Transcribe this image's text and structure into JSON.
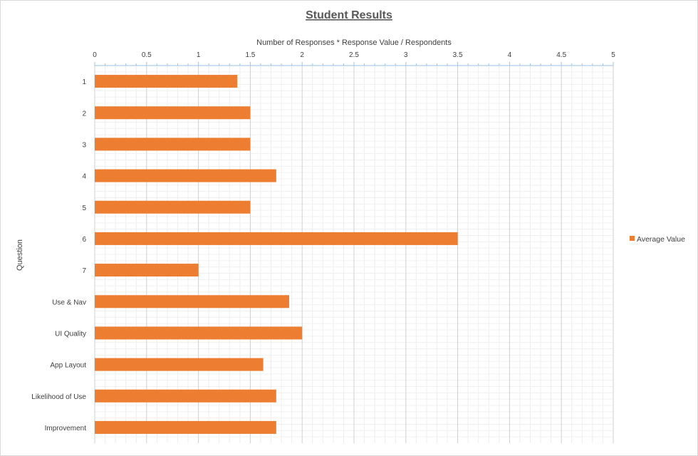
{
  "chart_data": {
    "type": "bar",
    "orientation": "horizontal",
    "title": "Student Results",
    "xlabel": "Number of Responses * Response Value / Respondents",
    "ylabel": "Question",
    "xlim": [
      0,
      5
    ],
    "x_ticks": [
      "0",
      "0.5",
      "1",
      "1.5",
      "2",
      "2.5",
      "3",
      "3.5",
      "4",
      "4.5",
      "5"
    ],
    "x_axis_position": "top",
    "grid": true,
    "legend_position": "right",
    "categories": [
      "1",
      "2",
      "3",
      "4",
      "5",
      "6",
      "7",
      "Use & Nav",
      "UI Quality",
      "App Layout",
      "Likelihood of Use",
      "Improvement"
    ],
    "series": [
      {
        "name": "Average Value",
        "color": "#ED7D31",
        "values": [
          1.375,
          1.5,
          1.5,
          1.75,
          1.5,
          3.5,
          1.0,
          1.875,
          2.0,
          1.625,
          1.75,
          1.75
        ]
      }
    ]
  }
}
